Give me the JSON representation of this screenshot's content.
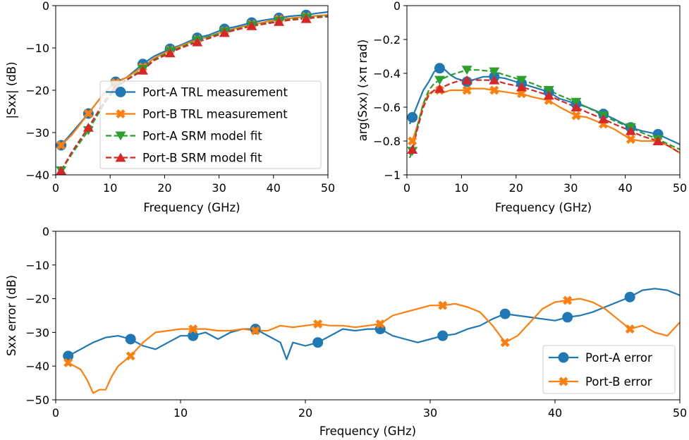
{
  "chart_data": [
    {
      "id": "top-left",
      "type": "line",
      "xlabel": "Frequency (GHz)",
      "ylabel": "|Sxx| (dB)",
      "xlim": [
        0,
        50
      ],
      "ylim": [
        -40,
        0
      ],
      "xticks": [
        0,
        10,
        20,
        30,
        40,
        50
      ],
      "yticks": [
        -40,
        -30,
        -20,
        -10,
        0
      ],
      "legend_position": "center-right",
      "series": [
        {
          "name": "Port-A TRL measurement",
          "color": "#1f77b4",
          "style": "solid",
          "marker": "circle",
          "x": [
            1,
            3,
            6,
            9,
            11,
            13,
            16,
            18,
            21,
            23,
            26,
            28,
            31,
            33,
            36,
            38,
            41,
            43,
            46,
            48,
            50
          ],
          "y": [
            -33,
            -30,
            -25.5,
            -20.5,
            -18,
            -17,
            -13.8,
            -12,
            -10.2,
            -9.3,
            -7.6,
            -7,
            -5.5,
            -5,
            -4,
            -3.5,
            -2.9,
            -2.5,
            -2.2,
            -1.8,
            -1.5
          ],
          "markers_x": [
            1,
            6,
            11,
            16,
            21,
            26,
            31,
            36,
            41,
            46
          ]
        },
        {
          "name": "Port-B TRL measurement",
          "color": "#ff7f0e",
          "style": "solid",
          "marker": "x",
          "x": [
            1,
            3,
            6,
            9,
            11,
            13,
            16,
            18,
            21,
            23,
            26,
            28,
            31,
            33,
            36,
            38,
            41,
            43,
            46,
            48,
            50
          ],
          "y": [
            -33,
            -30.5,
            -25.5,
            -20.5,
            -18.2,
            -17,
            -14.5,
            -12.5,
            -10.5,
            -9.5,
            -8,
            -7.4,
            -6,
            -5.4,
            -4.4,
            -4,
            -3.2,
            -3,
            -2.6,
            -2.4,
            -2.2
          ],
          "markers_x": [
            1,
            6,
            11,
            16,
            21,
            26,
            31,
            36,
            41,
            46
          ]
        },
        {
          "name": "Port-A SRM model fit",
          "color": "#2ca02c",
          "style": "dashed",
          "marker": "triangle-down",
          "x": [
            1,
            3,
            6,
            9,
            11,
            13,
            16,
            18,
            21,
            23,
            26,
            28,
            31,
            33,
            36,
            38,
            41,
            43,
            46,
            48,
            50
          ],
          "y": [
            -39,
            -35,
            -29.5,
            -23,
            -19.5,
            -17.5,
            -15,
            -12.8,
            -10.8,
            -9.8,
            -8.2,
            -7.4,
            -6.2,
            -5.6,
            -4.7,
            -4.3,
            -3.6,
            -3.2,
            -2.9,
            -2.6,
            -2.4
          ],
          "markers_x": [
            1,
            6,
            11,
            16,
            21,
            26,
            31,
            36,
            41,
            46
          ]
        },
        {
          "name": "Port-B SRM model fit",
          "color": "#d62728",
          "style": "dashed",
          "marker": "triangle-up",
          "x": [
            1,
            3,
            6,
            9,
            11,
            13,
            16,
            18,
            21,
            23,
            26,
            28,
            31,
            33,
            36,
            38,
            41,
            43,
            46,
            48,
            50
          ],
          "y": [
            -39,
            -34.5,
            -28.8,
            -22.5,
            -19.5,
            -17.6,
            -15.3,
            -13,
            -11.2,
            -10,
            -8.6,
            -7.8,
            -6.4,
            -5.8,
            -4.8,
            -4.4,
            -3.8,
            -3.4,
            -3.1,
            -2.8,
            -2.6
          ],
          "markers_x": [
            1,
            6,
            11,
            16,
            21,
            26,
            31,
            36,
            41,
            46
          ]
        }
      ]
    },
    {
      "id": "top-right",
      "type": "line",
      "xlabel": "Frequency (GHz)",
      "ylabel": "arg(Sxx) (×π rad)",
      "xlim": [
        0,
        50
      ],
      "ylim": [
        -1.0,
        0.0
      ],
      "xticks": [
        0,
        10,
        20,
        30,
        40,
        50
      ],
      "yticks": [
        -1.0,
        -0.8,
        -0.6,
        -0.4,
        -0.2,
        0.0
      ],
      "series": [
        {
          "name": "Port-A TRL measurement",
          "color": "#1f77b4",
          "style": "solid",
          "marker": "circle",
          "x": [
            0.5,
            1,
            2,
            3,
            4,
            5,
            6,
            7,
            8,
            9,
            10,
            11,
            12,
            14,
            16,
            18,
            20,
            21,
            23,
            26,
            28,
            31,
            33,
            36,
            38,
            41,
            43,
            46,
            48,
            50
          ],
          "y": [
            -0.7,
            -0.66,
            -0.58,
            -0.5,
            -0.45,
            -0.39,
            -0.37,
            -0.38,
            -0.41,
            -0.43,
            -0.44,
            -0.45,
            -0.44,
            -0.42,
            -0.42,
            -0.43,
            -0.45,
            -0.46,
            -0.48,
            -0.51,
            -0.55,
            -0.58,
            -0.6,
            -0.64,
            -0.67,
            -0.72,
            -0.74,
            -0.76,
            -0.79,
            -0.82
          ],
          "markers_x": [
            1,
            6,
            11,
            16,
            21,
            26,
            31,
            36,
            41,
            46
          ]
        },
        {
          "name": "Port-B TRL measurement",
          "color": "#ff7f0e",
          "style": "solid",
          "marker": "x",
          "x": [
            0.5,
            1,
            2,
            3,
            4,
            5,
            6,
            7,
            8,
            9,
            10,
            11,
            12,
            14,
            16,
            18,
            20,
            21,
            23,
            26,
            28,
            31,
            33,
            36,
            38,
            41,
            43,
            46,
            48,
            50
          ],
          "y": [
            -0.82,
            -0.8,
            -0.7,
            -0.58,
            -0.52,
            -0.5,
            -0.5,
            -0.51,
            -0.5,
            -0.5,
            -0.5,
            -0.5,
            -0.49,
            -0.49,
            -0.5,
            -0.51,
            -0.52,
            -0.52,
            -0.54,
            -0.56,
            -0.6,
            -0.65,
            -0.66,
            -0.7,
            -0.73,
            -0.79,
            -0.8,
            -0.8,
            -0.83,
            -0.87
          ],
          "markers_x": [
            1,
            6,
            11,
            16,
            21,
            26,
            31,
            36,
            41,
            46
          ]
        },
        {
          "name": "Port-A SRM model fit",
          "color": "#2ca02c",
          "style": "dashed",
          "marker": "triangle-down",
          "x": [
            0.5,
            1,
            2,
            3,
            4,
            5,
            6,
            8,
            10,
            11,
            13,
            16,
            18,
            21,
            23,
            26,
            28,
            31,
            33,
            36,
            38,
            41,
            43,
            46,
            48,
            50
          ],
          "y": [
            -0.9,
            -0.86,
            -0.7,
            -0.58,
            -0.5,
            -0.46,
            -0.44,
            -0.41,
            -0.39,
            -0.38,
            -0.38,
            -0.39,
            -0.41,
            -0.44,
            -0.46,
            -0.5,
            -0.53,
            -0.57,
            -0.6,
            -0.65,
            -0.68,
            -0.72,
            -0.75,
            -0.79,
            -0.82,
            -0.85
          ],
          "markers_x": [
            1,
            6,
            11,
            16,
            21,
            26,
            31,
            36,
            41,
            46
          ]
        },
        {
          "name": "Port-B SRM model fit",
          "color": "#d62728",
          "style": "dashed",
          "marker": "triangle-up",
          "x": [
            0.5,
            1,
            2,
            3,
            4,
            5,
            6,
            8,
            10,
            11,
            13,
            16,
            18,
            21,
            23,
            26,
            28,
            31,
            33,
            36,
            38,
            41,
            43,
            46,
            48,
            50
          ],
          "y": [
            -0.88,
            -0.85,
            -0.72,
            -0.6,
            -0.53,
            -0.5,
            -0.49,
            -0.46,
            -0.44,
            -0.44,
            -0.44,
            -0.44,
            -0.46,
            -0.48,
            -0.5,
            -0.53,
            -0.56,
            -0.6,
            -0.63,
            -0.67,
            -0.7,
            -0.74,
            -0.77,
            -0.8,
            -0.83,
            -0.87
          ],
          "markers_x": [
            1,
            6,
            11,
            16,
            21,
            26,
            31,
            36,
            41,
            46
          ]
        }
      ]
    },
    {
      "id": "bottom",
      "type": "line",
      "xlabel": "Frequency (GHz)",
      "ylabel": "Sxx error (dB)",
      "xlim": [
        0,
        50
      ],
      "ylim": [
        -50,
        0
      ],
      "xticks": [
        0,
        10,
        20,
        30,
        40,
        50
      ],
      "yticks": [
        -50,
        -40,
        -30,
        -20,
        -10,
        0
      ],
      "legend_position": "lower-right",
      "series": [
        {
          "name": "Port-A error",
          "color": "#1f77b4",
          "style": "solid",
          "marker": "circle",
          "x": [
            1,
            2,
            3,
            4,
            5,
            6,
            7,
            8,
            9,
            10,
            11,
            12,
            13,
            14,
            15,
            16,
            17,
            18,
            18.5,
            19,
            20,
            21,
            22,
            23,
            24,
            25,
            26,
            27,
            28,
            29,
            30,
            31,
            32,
            33,
            34,
            35,
            36,
            37,
            38,
            39,
            40,
            41,
            42,
            43,
            44,
            45,
            46,
            47,
            48,
            49,
            50
          ],
          "y": [
            -37,
            -35,
            -33,
            -31.5,
            -31,
            -32,
            -34,
            -35,
            -33,
            -31,
            -31,
            -30,
            -32,
            -30,
            -29,
            -29,
            -31,
            -33,
            -38,
            -33,
            -34,
            -33,
            -31,
            -29,
            -29.5,
            -29,
            -29,
            -31,
            -32,
            -33,
            -32,
            -31,
            -30.5,
            -29,
            -28,
            -26,
            -24.5,
            -25,
            -25.5,
            -26,
            -26.5,
            -25.5,
            -25,
            -24,
            -22.5,
            -21,
            -19.5,
            -17.5,
            -17,
            -17.5,
            -19
          ],
          "markers_x": [
            1,
            6,
            11,
            16,
            21,
            26,
            31,
            36,
            41,
            46
          ]
        },
        {
          "name": "Port-B error",
          "color": "#ff7f0e",
          "style": "solid",
          "marker": "x",
          "x": [
            1,
            2,
            2.5,
            3,
            3.5,
            4,
            4.5,
            5,
            5.5,
            6,
            7,
            8,
            9,
            10,
            11,
            12,
            13,
            14,
            15,
            16,
            17,
            18,
            19,
            20,
            21,
            22,
            23,
            24,
            25,
            26,
            27,
            28,
            29,
            30,
            31,
            32,
            33,
            34,
            35,
            36,
            37,
            38,
            39,
            40,
            41,
            42,
            43,
            44,
            45,
            46,
            47,
            48,
            49,
            50
          ],
          "y": [
            -39,
            -41,
            -44,
            -48,
            -47,
            -47,
            -43,
            -40,
            -38.5,
            -37,
            -33,
            -30,
            -29.5,
            -29,
            -29,
            -29,
            -29.5,
            -29.5,
            -29,
            -29.5,
            -29.5,
            -28,
            -28.5,
            -28,
            -27.5,
            -28,
            -28,
            -28.5,
            -28,
            -27.5,
            -25,
            -24,
            -23,
            -22,
            -22,
            -21.5,
            -22.5,
            -24,
            -28,
            -33,
            -31,
            -27,
            -23,
            -21,
            -20.5,
            -20,
            -21,
            -23,
            -26,
            -29,
            -28,
            -30,
            -31,
            -27
          ],
          "markers_x": [
            1,
            6,
            11,
            16,
            21,
            26,
            31,
            36,
            41,
            46
          ]
        }
      ]
    }
  ]
}
